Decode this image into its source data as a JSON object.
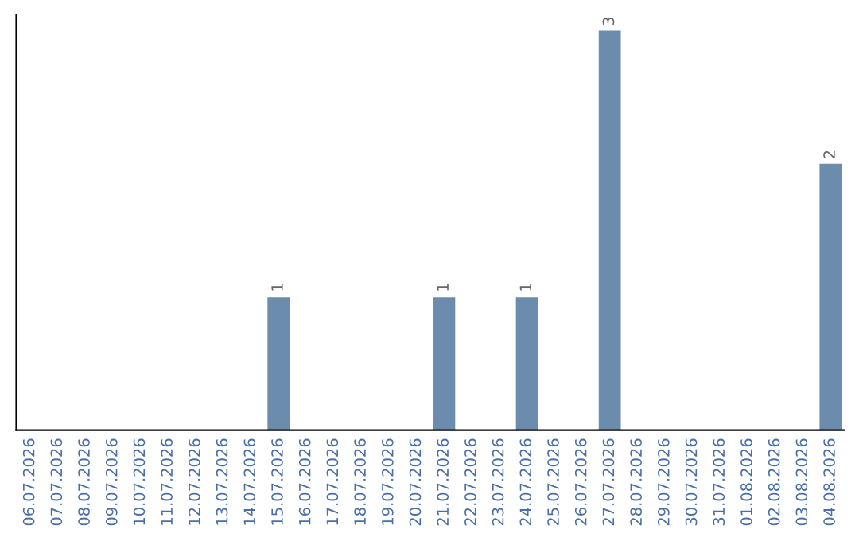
{
  "chart_data": {
    "type": "bar",
    "categories": [
      "06.07.2026",
      "07.07.2026",
      "08.07.2026",
      "09.07.2026",
      "10.07.2026",
      "11.07.2026",
      "12.07.2026",
      "13.07.2026",
      "14.07.2026",
      "15.07.2026",
      "16.07.2026",
      "17.07.2026",
      "18.07.2026",
      "19.07.2026",
      "20.07.2026",
      "21.07.2026",
      "22.07.2026",
      "23.07.2026",
      "24.07.2026",
      "25.07.2026",
      "26.07.2026",
      "27.07.2026",
      "28.07.2026",
      "29.07.2026",
      "30.07.2026",
      "31.07.2026",
      "01.08.2026",
      "02.08.2026",
      "03.08.2026",
      "04.08.2026"
    ],
    "values": [
      0,
      0,
      0,
      0,
      0,
      0,
      0,
      0,
      0,
      1,
      0,
      0,
      0,
      0,
      0,
      1,
      0,
      0,
      1,
      0,
      0,
      3,
      0,
      0,
      0,
      0,
      0,
      0,
      0,
      2
    ],
    "value_labels": [
      null,
      null,
      null,
      null,
      null,
      null,
      null,
      null,
      null,
      "1",
      null,
      null,
      null,
      null,
      null,
      "1",
      null,
      null,
      "1",
      null,
      null,
      "3",
      null,
      null,
      null,
      null,
      null,
      null,
      null,
      "2"
    ],
    "color": "#6b8cac",
    "grid": false,
    "tick_labels": "x"
  }
}
